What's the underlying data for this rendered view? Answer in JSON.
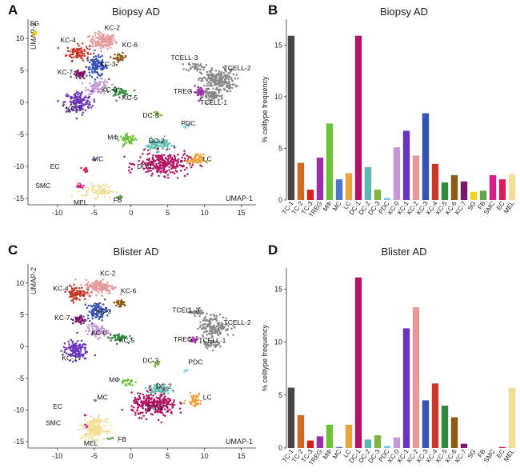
{
  "colors": {
    "TC-1": "#4a4444",
    "TC-2": "#d2691e",
    "TC-3": "#d62020",
    "TREG": "#9b2fa3",
    "MΦ": "#6cc23a",
    "MC": "#4f76c4",
    "LC": "#e8a33a",
    "DC-1": "#b01565",
    "DC-2": "#5fb9ad",
    "DC-3": "#7fb642",
    "PDC": "#7ec8ee",
    "KC-0": "#c39ad6",
    "KC-1": "#6a34b8",
    "KC-2": "#e59a9a",
    "KC-3": "#3554b3",
    "KC-4": "#c8392a",
    "KC-5": "#2f8a3a",
    "KC-6": "#8a5a16",
    "KC-7": "#7a1a6a",
    "SG": "#f0d320",
    "FB": "#5fa34a",
    "SMC": "#d81c8a",
    "EC": "#d81c5a",
    "MEL": "#f2de96"
  },
  "panels": [
    {
      "label": "A",
      "title": "Biopsy AD",
      "chart_data": {
        "type": "scatter",
        "title": "Biopsy AD",
        "xlabel": "UMAP-1",
        "ylabel": "UMAP-2",
        "xlim": [
          -14,
          17
        ],
        "ylim": [
          -16,
          13
        ],
        "xticks": [
          -10,
          -5,
          0,
          5,
          10,
          15
        ],
        "yticks": [
          -15,
          -10,
          -5,
          0,
          5,
          10
        ],
        "clusters": [
          {
            "name": "SG",
            "x": -13.0,
            "y": 10.8,
            "sx": 0.3,
            "sy": 0.5,
            "n": 12
          },
          {
            "name": "KC-2",
            "x": -3.8,
            "y": 9.6,
            "sx": 1.6,
            "sy": 1.1,
            "n": 140
          },
          {
            "name": "KC-4",
            "x": -7.2,
            "y": 7.8,
            "sx": 1.4,
            "sy": 1.1,
            "n": 90
          },
          {
            "name": "KC-6",
            "x": -1.5,
            "y": 7.0,
            "sx": 0.8,
            "sy": 0.6,
            "n": 30
          },
          {
            "name": "KC-3",
            "x": -4.6,
            "y": 5.6,
            "sx": 1.3,
            "sy": 1.4,
            "n": 110
          },
          {
            "name": "KC-7",
            "x": -7.0,
            "y": 4.3,
            "sx": 0.8,
            "sy": 0.6,
            "n": 45
          },
          {
            "name": "KC-0",
            "x": -4.4,
            "y": 2.4,
            "sx": 1.4,
            "sy": 1.0,
            "n": 80
          },
          {
            "name": "KC-5",
            "x": -1.6,
            "y": 1.6,
            "sx": 1.2,
            "sy": 0.6,
            "n": 50
          },
          {
            "name": "KC-1",
            "x": -7.2,
            "y": 0.0,
            "sx": 1.7,
            "sy": 1.6,
            "n": 150
          },
          {
            "name": "TCELL-3",
            "x": 8.8,
            "y": 5.6,
            "sx": 1.2,
            "sy": 0.6,
            "n": 40
          },
          {
            "name": "TCELL-2",
            "x": 11.8,
            "y": 3.4,
            "sx": 2.1,
            "sy": 1.6,
            "n": 230
          },
          {
            "name": "TREG",
            "x": 9.4,
            "y": 1.6,
            "sx": 0.8,
            "sy": 0.8,
            "n": 40
          },
          {
            "name": "TCELL-1",
            "x": 11.2,
            "y": 1.0,
            "sx": 1.2,
            "sy": 0.7,
            "n": 60
          },
          {
            "name": "DC-3",
            "x": 3.6,
            "y": -1.8,
            "sx": 0.4,
            "sy": 0.4,
            "n": 14
          },
          {
            "name": "PDC",
            "x": 7.6,
            "y": -3.6,
            "sx": 0.3,
            "sy": 0.3,
            "n": 8
          },
          {
            "name": "MΦ",
            "x": -0.4,
            "y": -5.8,
            "sx": 1.0,
            "sy": 0.7,
            "n": 55
          },
          {
            "name": "DC-2",
            "x": 3.6,
            "y": -6.6,
            "sx": 1.5,
            "sy": 0.9,
            "n": 90
          },
          {
            "name": "DC-1",
            "x": 4.4,
            "y": -9.6,
            "sx": 3.2,
            "sy": 1.6,
            "n": 260
          },
          {
            "name": "LC",
            "x": 8.8,
            "y": -9.0,
            "sx": 1.0,
            "sy": 0.8,
            "n": 60
          },
          {
            "name": "MC",
            "x": -5.0,
            "y": -9.0,
            "sx": 0.2,
            "sy": 0.2,
            "n": 4
          },
          {
            "name": "EC",
            "x": -6.2,
            "y": -10.6,
            "sx": 0.4,
            "sy": 0.4,
            "n": 10
          },
          {
            "name": "SMC",
            "x": -7.0,
            "y": -13.0,
            "sx": 0.5,
            "sy": 0.4,
            "n": 14
          },
          {
            "name": "MEL",
            "x": -4.4,
            "y": -13.8,
            "sx": 2.0,
            "sy": 1.0,
            "n": 70
          },
          {
            "name": "FB",
            "x": -1.6,
            "y": -14.8,
            "sx": 0.4,
            "sy": 0.3,
            "n": 8
          }
        ],
        "labels": [
          {
            "text": "SG",
            "x": -13.8,
            "y": 12.0
          },
          {
            "text": "KC-2",
            "x": -3.6,
            "y": 11.3
          },
          {
            "text": "KC-4",
            "x": -9.6,
            "y": 9.4
          },
          {
            "text": "KC-6",
            "x": -1.2,
            "y": 8.6
          },
          {
            "text": "KC-3",
            "x": -4.2,
            "y": 5.6
          },
          {
            "text": "KC-7",
            "x": -10.0,
            "y": 4.4
          },
          {
            "text": "KC-0",
            "x": -4.0,
            "y": 1.6
          },
          {
            "text": "KC-5",
            "x": -1.2,
            "y": 0.4
          },
          {
            "text": "KC-1",
            "x": -8.8,
            "y": -1.4
          },
          {
            "text": "TCELL-3",
            "x": 5.4,
            "y": 6.6
          },
          {
            "text": "TCELL-2",
            "x": 12.6,
            "y": 5.0
          },
          {
            "text": "TREG",
            "x": 5.8,
            "y": 1.4
          },
          {
            "text": "TCELL-1",
            "x": 9.4,
            "y": -0.4
          },
          {
            "text": "DC-3",
            "x": 1.6,
            "y": -2.4
          },
          {
            "text": "PDC",
            "x": 6.8,
            "y": -3.6
          },
          {
            "text": "MΦ",
            "x": -3.2,
            "y": -5.8
          },
          {
            "text": "DC-2",
            "x": 2.4,
            "y": -6.4
          },
          {
            "text": "DC-1",
            "x": 0.8,
            "y": -10.4
          },
          {
            "text": "LC",
            "x": 9.8,
            "y": -9.2
          },
          {
            "text": "MC",
            "x": -5.2,
            "y": -9.2
          },
          {
            "text": "EC",
            "x": -11.0,
            "y": -10.4
          },
          {
            "text": "SMC",
            "x": -13.0,
            "y": -13.4
          },
          {
            "text": "MEL",
            "x": -7.8,
            "y": -16.0
          },
          {
            "text": "FB",
            "x": -2.4,
            "y": -15.6
          }
        ]
      }
    },
    {
      "label": "B",
      "title": "Biopsy AD",
      "chart_data": {
        "type": "bar",
        "title": "Biopsy AD",
        "xlabel": "",
        "ylabel": "% celltype frequency",
        "ylim": [
          0,
          17.5
        ],
        "yticks": [
          0,
          5,
          10,
          15
        ],
        "categories": [
          "TC-1",
          "TC-2",
          "TC-3",
          "TREG",
          "MΦ",
          "MC",
          "LC",
          "DC-1",
          "DC-2",
          "DC-3",
          "PDC",
          "KC-0",
          "KC-1",
          "KC-2",
          "KC-3",
          "KC-4",
          "KC-5",
          "KC-6",
          "KC-7",
          "SG",
          "FB",
          "SMC",
          "EC",
          "MEL"
        ],
        "values": [
          15.9,
          3.6,
          1.0,
          4.1,
          7.4,
          2.0,
          2.6,
          15.9,
          3.2,
          1.0,
          0.2,
          5.1,
          6.7,
          4.3,
          8.4,
          3.5,
          1.7,
          2.4,
          1.8,
          0.8,
          0.9,
          2.4,
          2.0,
          2.5
        ]
      }
    },
    {
      "label": "C",
      "title": "Blister AD",
      "chart_data": {
        "type": "scatter",
        "title": "Blister AD",
        "xlabel": "UMAP-1",
        "ylabel": "UMAP-2",
        "xlim": [
          -14,
          17
        ],
        "ylim": [
          -16,
          13
        ],
        "xticks": [
          -10,
          -5,
          0,
          5,
          10,
          15
        ],
        "yticks": [
          -15,
          -10,
          -5,
          0,
          5,
          10
        ],
        "clusters": [
          {
            "name": "KC-2",
            "x": -4.2,
            "y": 9.4,
            "sx": 1.8,
            "sy": 1.0,
            "n": 160
          },
          {
            "name": "KC-4",
            "x": -7.4,
            "y": 8.4,
            "sx": 1.2,
            "sy": 1.0,
            "n": 80
          },
          {
            "name": "KC-6",
            "x": -1.6,
            "y": 6.8,
            "sx": 0.9,
            "sy": 0.6,
            "n": 30
          },
          {
            "name": "KC-3",
            "x": -4.6,
            "y": 5.6,
            "sx": 1.2,
            "sy": 1.2,
            "n": 90
          },
          {
            "name": "KC-7",
            "x": -7.0,
            "y": 4.2,
            "sx": 0.8,
            "sy": 0.6,
            "n": 40
          },
          {
            "name": "KC-0",
            "x": -4.6,
            "y": 2.4,
            "sx": 1.3,
            "sy": 0.9,
            "n": 70
          },
          {
            "name": "KC-5",
            "x": -1.8,
            "y": 1.4,
            "sx": 1.2,
            "sy": 0.6,
            "n": 50
          },
          {
            "name": "KC-1",
            "x": -7.6,
            "y": -0.6,
            "sx": 1.5,
            "sy": 1.4,
            "n": 130
          },
          {
            "name": "TCELL-3",
            "x": 9.0,
            "y": 5.4,
            "sx": 1.0,
            "sy": 0.5,
            "n": 30
          },
          {
            "name": "TCELL-2",
            "x": 11.4,
            "y": 3.2,
            "sx": 1.9,
            "sy": 1.5,
            "n": 150
          },
          {
            "name": "TREG",
            "x": 8.6,
            "y": 1.0,
            "sx": 0.6,
            "sy": 0.5,
            "n": 20
          },
          {
            "name": "TCELL-1",
            "x": 10.8,
            "y": 0.4,
            "sx": 1.0,
            "sy": 0.6,
            "n": 40
          },
          {
            "name": "DC-3",
            "x": 3.6,
            "y": -2.6,
            "sx": 0.4,
            "sy": 0.5,
            "n": 14
          },
          {
            "name": "PDC",
            "x": 7.4,
            "y": -3.8,
            "sx": 0.2,
            "sy": 0.2,
            "n": 4
          },
          {
            "name": "MΦ",
            "x": -0.6,
            "y": -5.6,
            "sx": 0.9,
            "sy": 0.5,
            "n": 25
          },
          {
            "name": "DC-2",
            "x": 3.8,
            "y": -6.8,
            "sx": 1.4,
            "sy": 0.8,
            "n": 70
          },
          {
            "name": "DC-1",
            "x": 3.2,
            "y": -9.2,
            "sx": 2.8,
            "sy": 1.6,
            "n": 280
          },
          {
            "name": "LC",
            "x": 8.6,
            "y": -8.4,
            "sx": 0.9,
            "sy": 0.9,
            "n": 50
          },
          {
            "name": "MC",
            "x": -4.8,
            "y": -8.4,
            "sx": 0.2,
            "sy": 0.2,
            "n": 4
          },
          {
            "name": "MEL",
            "x": -5.0,
            "y": -13.0,
            "sx": 1.4,
            "sy": 1.4,
            "n": 200
          },
          {
            "name": "SMC",
            "x": -6.2,
            "y": -12.6,
            "sx": 0.3,
            "sy": 0.3,
            "n": 4
          },
          {
            "name": "EC",
            "x": -6.2,
            "y": -10.8,
            "sx": 0.2,
            "sy": 0.2,
            "n": 3
          },
          {
            "name": "FB",
            "x": -2.8,
            "y": -14.6,
            "sx": 0.3,
            "sy": 0.3,
            "n": 5
          }
        ],
        "labels": [
          {
            "text": "KC-2",
            "x": -4.2,
            "y": 11.2
          },
          {
            "text": "KC-4",
            "x": -10.6,
            "y": 8.8
          },
          {
            "text": "KC-6",
            "x": -1.4,
            "y": 8.4
          },
          {
            "text": "KC-3",
            "x": -4.8,
            "y": 5.2
          },
          {
            "text": "KC-7",
            "x": -10.4,
            "y": 4.2
          },
          {
            "text": "KC-0",
            "x": -5.4,
            "y": 1.8
          },
          {
            "text": "KC-5",
            "x": -1.6,
            "y": 0.6
          },
          {
            "text": "KC-1",
            "x": -9.4,
            "y": -2.2
          },
          {
            "text": "TCELL-3",
            "x": 5.6,
            "y": 5.4
          },
          {
            "text": "TCELL-2",
            "x": 12.6,
            "y": 3.4
          },
          {
            "text": "TREG",
            "x": 5.8,
            "y": 0.8
          },
          {
            "text": "TCELL-1",
            "x": 9.2,
            "y": 0.6
          },
          {
            "text": "DC-3",
            "x": 1.6,
            "y": -2.6
          },
          {
            "text": "PDC",
            "x": 7.8,
            "y": -2.8
          },
          {
            "text": "MΦ",
            "x": -3.0,
            "y": -5.6
          },
          {
            "text": "DC-2",
            "x": 3.4,
            "y": -6.6
          },
          {
            "text": "DC-1",
            "x": 2.2,
            "y": -10.0
          },
          {
            "text": "LC",
            "x": 9.8,
            "y": -8.4
          },
          {
            "text": "MC",
            "x": -4.6,
            "y": -8.4
          },
          {
            "text": "EC",
            "x": -10.6,
            "y": -9.8
          },
          {
            "text": "SMC",
            "x": -11.6,
            "y": -12.4
          },
          {
            "text": "MEL",
            "x": -6.4,
            "y": -15.6
          },
          {
            "text": "FB",
            "x": -1.8,
            "y": -15.0
          }
        ]
      }
    },
    {
      "label": "D",
      "title": "Blister AD",
      "chart_data": {
        "type": "bar",
        "title": "Blister AD",
        "xlabel": "",
        "ylabel": "% celltype frequency",
        "ylim": [
          0,
          17
        ],
        "yticks": [
          0,
          5,
          10,
          15
        ],
        "categories": [
          "TC-1",
          "TC-2",
          "TC-3",
          "TREG",
          "MΦ",
          "MC",
          "LC",
          "DC-1",
          "DC-2",
          "DC-3",
          "PDC",
          "KC-0",
          "KC-1",
          "KC-2",
          "KC-3",
          "KC-4",
          "KC-5",
          "KC-6",
          "KC-7",
          "SG",
          "FB",
          "SMC",
          "EC",
          "MEL"
        ],
        "values": [
          5.7,
          3.1,
          0.7,
          1.1,
          2.2,
          0.1,
          2.2,
          16.1,
          0.8,
          1.2,
          0.2,
          1.0,
          11.3,
          13.3,
          4.5,
          6.1,
          4.0,
          2.9,
          0.4,
          0.0,
          0.0,
          0.0,
          0.1,
          5.7
        ]
      }
    }
  ]
}
